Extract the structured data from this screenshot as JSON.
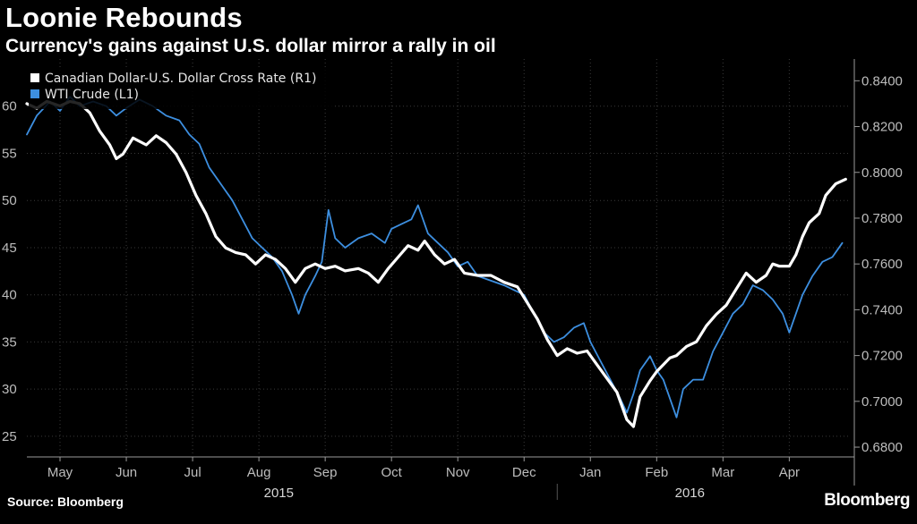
{
  "header": {
    "title": "Loonie Rebounds",
    "subtitle": "Currency's gains against U.S. dollar mirror a rally in oil"
  },
  "footer": {
    "source": "Source: Bloomberg",
    "brand": "Bloomberg"
  },
  "colors": {
    "background": "#000000",
    "cad": "#ffffff",
    "wti": "#3d8fe0",
    "grid": "#3a3a3a"
  },
  "chart_data": {
    "type": "line",
    "title": "Loonie Rebounds",
    "subtitle": "Currency's gains against U.S. dollar mirror a rally in oil",
    "x_unit": "months since 2015-05-01",
    "xlim": [
      -0.5,
      11.9
    ],
    "x_ticks": [
      0,
      1,
      2,
      3,
      4,
      5,
      6,
      7,
      8,
      9,
      10,
      11
    ],
    "x_tick_labels": [
      "May",
      "Jun",
      "Jul",
      "Aug",
      "Sep",
      "Oct",
      "Nov",
      "Dec",
      "Jan",
      "Feb",
      "Mar",
      "Apr"
    ],
    "year_labels": [
      {
        "label": "2015",
        "x": 3.3
      },
      {
        "label": "2016",
        "x": 9.5
      }
    ],
    "year_divider_x": 7.5,
    "y_left": {
      "ylim": [
        23,
        65
      ],
      "ticks": [
        25,
        30,
        35,
        40,
        45,
        50,
        55,
        60
      ]
    },
    "y_right": {
      "ylim": [
        0.6765,
        0.8495
      ],
      "ticks": [
        0.68,
        0.7,
        0.72,
        0.74,
        0.76,
        0.78,
        0.8,
        0.82,
        0.84
      ],
      "tick_labels": [
        "0.6800",
        "0.7000",
        "0.7200",
        "0.7400",
        "0.7600",
        "0.7800",
        "0.8000",
        "0.8200",
        "0.8400"
      ]
    },
    "legend": {
      "placement": "top-left",
      "entries": [
        {
          "label": "Canadian Dollar-U.S. Dollar Cross Rate (R1)",
          "series": "cad"
        },
        {
          "label": "WTI Crude  (L1)",
          "series": "wti"
        }
      ]
    },
    "grid": true,
    "series": [
      {
        "name": "WTI Crude (L1)",
        "axis": "left",
        "color": "#3d8fe0",
        "points": [
          [
            -0.5,
            57
          ],
          [
            -0.35,
            59
          ],
          [
            -0.15,
            60.5
          ],
          [
            0.0,
            59.5
          ],
          [
            0.15,
            61
          ],
          [
            0.3,
            60
          ],
          [
            0.5,
            60.5
          ],
          [
            0.7,
            60
          ],
          [
            0.85,
            59
          ],
          [
            1.0,
            59.8
          ],
          [
            1.2,
            60.7
          ],
          [
            1.4,
            60
          ],
          [
            1.6,
            59
          ],
          [
            1.8,
            58.5
          ],
          [
            1.95,
            57
          ],
          [
            2.1,
            56
          ],
          [
            2.25,
            53.5
          ],
          [
            2.45,
            51.5
          ],
          [
            2.6,
            50
          ],
          [
            2.75,
            48
          ],
          [
            2.9,
            46
          ],
          [
            3.05,
            45
          ],
          [
            3.2,
            44
          ],
          [
            3.35,
            42.5
          ],
          [
            3.5,
            40
          ],
          [
            3.6,
            38
          ],
          [
            3.7,
            40
          ],
          [
            3.85,
            42
          ],
          [
            3.95,
            43.5
          ],
          [
            4.05,
            49
          ],
          [
            4.15,
            46
          ],
          [
            4.3,
            45
          ],
          [
            4.5,
            46
          ],
          [
            4.7,
            46.5
          ],
          [
            4.9,
            45.5
          ],
          [
            5.0,
            47
          ],
          [
            5.15,
            47.5
          ],
          [
            5.3,
            48
          ],
          [
            5.4,
            49.5
          ],
          [
            5.55,
            46.5
          ],
          [
            5.7,
            45.5
          ],
          [
            5.85,
            44.5
          ],
          [
            6.0,
            43
          ],
          [
            6.15,
            43.5
          ],
          [
            6.3,
            42
          ],
          [
            6.5,
            41.5
          ],
          [
            6.7,
            41
          ],
          [
            6.85,
            40.5
          ],
          [
            7.0,
            40
          ],
          [
            7.15,
            38
          ],
          [
            7.3,
            36
          ],
          [
            7.45,
            35
          ],
          [
            7.6,
            35.5
          ],
          [
            7.75,
            36.5
          ],
          [
            7.9,
            37
          ],
          [
            8.0,
            35
          ],
          [
            8.15,
            33
          ],
          [
            8.3,
            31
          ],
          [
            8.45,
            29
          ],
          [
            8.55,
            27.5
          ],
          [
            8.65,
            29.5
          ],
          [
            8.75,
            32
          ],
          [
            8.9,
            33.5
          ],
          [
            9.0,
            32
          ],
          [
            9.1,
            31
          ],
          [
            9.2,
            29
          ],
          [
            9.3,
            27
          ],
          [
            9.4,
            30
          ],
          [
            9.55,
            31
          ],
          [
            9.7,
            31
          ],
          [
            9.85,
            34
          ],
          [
            10.0,
            36
          ],
          [
            10.15,
            38
          ],
          [
            10.3,
            39
          ],
          [
            10.45,
            41
          ],
          [
            10.6,
            40.5
          ],
          [
            10.75,
            39.5
          ],
          [
            10.9,
            38
          ],
          [
            11.0,
            36
          ],
          [
            11.1,
            38
          ],
          [
            11.2,
            40
          ],
          [
            11.35,
            42
          ],
          [
            11.5,
            43.5
          ],
          [
            11.65,
            44
          ],
          [
            11.8,
            45.5
          ]
        ]
      },
      {
        "name": "Canadian Dollar-U.S. Dollar Cross Rate (R1)",
        "axis": "right",
        "color": "#ffffff",
        "points": [
          [
            -0.5,
            0.83
          ],
          [
            -0.35,
            0.828
          ],
          [
            -0.2,
            0.831
          ],
          [
            0.0,
            0.829
          ],
          [
            0.15,
            0.831
          ],
          [
            0.3,
            0.83
          ],
          [
            0.45,
            0.826
          ],
          [
            0.6,
            0.818
          ],
          [
            0.75,
            0.812
          ],
          [
            0.85,
            0.806
          ],
          [
            0.95,
            0.808
          ],
          [
            1.1,
            0.815
          ],
          [
            1.3,
            0.812
          ],
          [
            1.45,
            0.816
          ],
          [
            1.6,
            0.813
          ],
          [
            1.75,
            0.808
          ],
          [
            1.9,
            0.8
          ],
          [
            2.05,
            0.79
          ],
          [
            2.2,
            0.782
          ],
          [
            2.35,
            0.772
          ],
          [
            2.5,
            0.767
          ],
          [
            2.65,
            0.765
          ],
          [
            2.8,
            0.764
          ],
          [
            2.95,
            0.76
          ],
          [
            3.1,
            0.764
          ],
          [
            3.25,
            0.762
          ],
          [
            3.4,
            0.758
          ],
          [
            3.55,
            0.752
          ],
          [
            3.7,
            0.758
          ],
          [
            3.85,
            0.76
          ],
          [
            4.0,
            0.758
          ],
          [
            4.15,
            0.759
          ],
          [
            4.3,
            0.757
          ],
          [
            4.5,
            0.758
          ],
          [
            4.65,
            0.756
          ],
          [
            4.8,
            0.752
          ],
          [
            4.95,
            0.758
          ],
          [
            5.1,
            0.763
          ],
          [
            5.25,
            0.768
          ],
          [
            5.4,
            0.766
          ],
          [
            5.5,
            0.77
          ],
          [
            5.65,
            0.764
          ],
          [
            5.8,
            0.76
          ],
          [
            5.95,
            0.762
          ],
          [
            6.1,
            0.756
          ],
          [
            6.3,
            0.755
          ],
          [
            6.5,
            0.755
          ],
          [
            6.7,
            0.752
          ],
          [
            6.9,
            0.75
          ],
          [
            7.05,
            0.743
          ],
          [
            7.2,
            0.736
          ],
          [
            7.35,
            0.727
          ],
          [
            7.5,
            0.72
          ],
          [
            7.65,
            0.723
          ],
          [
            7.8,
            0.721
          ],
          [
            7.95,
            0.722
          ],
          [
            8.1,
            0.716
          ],
          [
            8.25,
            0.71
          ],
          [
            8.4,
            0.704
          ],
          [
            8.55,
            0.692
          ],
          [
            8.65,
            0.689
          ],
          [
            8.75,
            0.702
          ],
          [
            8.9,
            0.709
          ],
          [
            9.0,
            0.713
          ],
          [
            9.1,
            0.716
          ],
          [
            9.2,
            0.719
          ],
          [
            9.3,
            0.72
          ],
          [
            9.45,
            0.724
          ],
          [
            9.6,
            0.726
          ],
          [
            9.75,
            0.733
          ],
          [
            9.9,
            0.738
          ],
          [
            10.05,
            0.742
          ],
          [
            10.2,
            0.749
          ],
          [
            10.35,
            0.756
          ],
          [
            10.5,
            0.752
          ],
          [
            10.65,
            0.755
          ],
          [
            10.75,
            0.76
          ],
          [
            10.85,
            0.759
          ],
          [
            11.0,
            0.759
          ],
          [
            11.1,
            0.764
          ],
          [
            11.2,
            0.772
          ],
          [
            11.3,
            0.778
          ],
          [
            11.45,
            0.782
          ],
          [
            11.55,
            0.79
          ],
          [
            11.7,
            0.795
          ],
          [
            11.85,
            0.797
          ]
        ]
      }
    ]
  }
}
